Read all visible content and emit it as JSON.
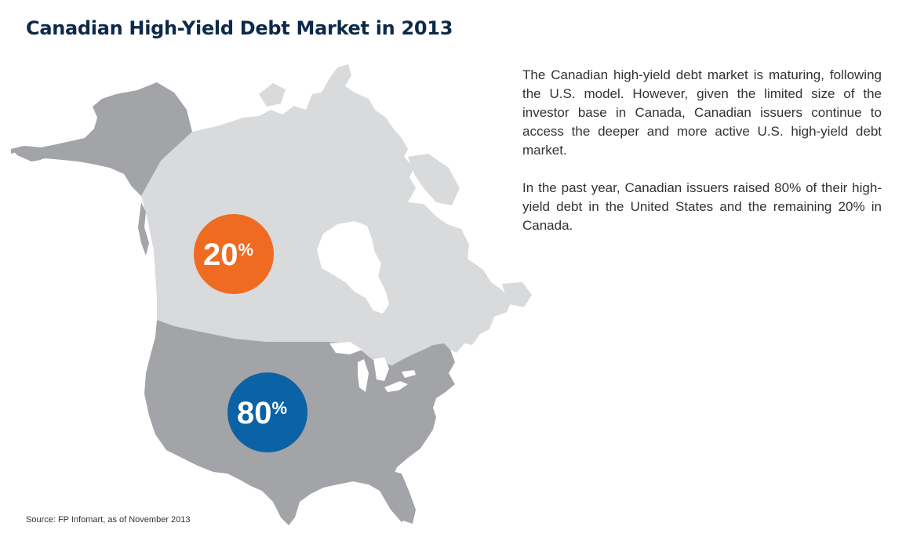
{
  "title": "Canadian High-Yield Debt Market in 2013",
  "paragraphs": [
    "The Canadian high-yield debt market is maturing, following the U.S. model. However, given the limited size of the investor base in Canada, Canadian issuers continue to access the deeper and more active U.S. high-yield debt market.",
    "In the past year, Canadian issuers raised 80% of their high-yield debt in the United States and the remaining 20% in Canada."
  ],
  "source": "Source: FP Infomart, as of November 2013",
  "regions": [
    {
      "name": "Canada",
      "value": "20",
      "unit": "%",
      "color": "#ef6b22"
    },
    {
      "name": "United States",
      "value": "80",
      "unit": "%",
      "color": "#0b62a4"
    }
  ],
  "colors": {
    "title": "#0d2a4a",
    "canada_land": "#d9dadc",
    "us_land": "#a3a4a8",
    "water": "#ffffff"
  }
}
